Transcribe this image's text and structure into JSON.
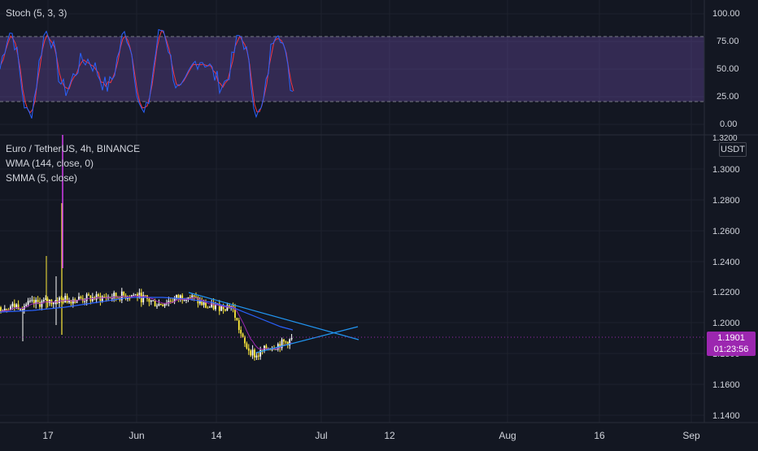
{
  "stoch_panel": {
    "legend": "Stoch (5, 3, 3)",
    "axis_labels": [
      "100.00",
      "75.00",
      "50.00",
      "25.00",
      "0.00"
    ]
  },
  "main_panel": {
    "legend_title": "Euro / TetherUS, 4h, BINANCE",
    "indicator_1": "WMA (144, close, 0)",
    "indicator_2": "SMMA (5, close)",
    "currency_label": "USDT",
    "axis_labels": [
      "1.3000",
      "1.2800",
      "1.2600",
      "1.2400",
      "1.2200",
      "1.2000",
      "1.1800",
      "1.1600",
      "1.1400"
    ],
    "top_cut_label": "1.3200",
    "price_tag": "1.1901",
    "countdown": "01:23:56"
  },
  "time_axis": [
    "17",
    "Jun",
    "14",
    "Jul",
    "12",
    "Aug",
    "16",
    "Sep"
  ],
  "colors": {
    "background": "#131722",
    "text": "#d1d4dc",
    "grid": "#1e222d",
    "band_fill": "#7e57c2",
    "stoch_k": "#2962ff",
    "stoch_d": "#f23645",
    "price_line": "#9c27b0",
    "trendline": "#2196f3",
    "candle_up": "#ffffff",
    "candle_down": "#ffeb3b"
  },
  "chart_data": {
    "type": "candlestick",
    "symbol": "Euro / TetherUS",
    "interval": "4h",
    "exchange": "BINANCE",
    "y_range": [
      1.13,
      1.32
    ],
    "last_price": 1.1901,
    "stoch_range": [
      0,
      100
    ],
    "stoch_band": [
      20,
      80
    ],
    "x_ticks": [
      "17",
      "Jun",
      "14",
      "Jul",
      "12",
      "Aug",
      "16",
      "Sep"
    ]
  }
}
